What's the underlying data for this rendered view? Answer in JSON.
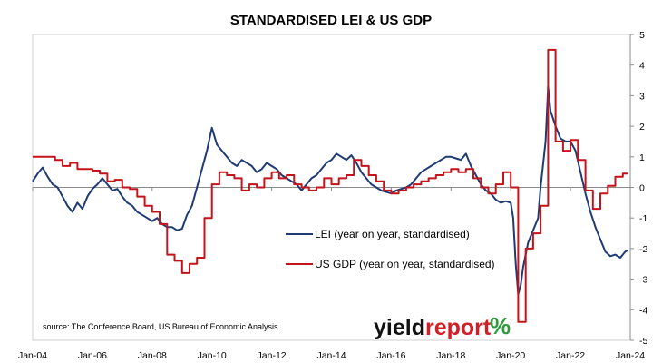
{
  "chart_data": {
    "type": "line",
    "title": "STANDARDISED LEI & US GDP",
    "source": "source: The Conference Board, US Bureau of Economic Analysis",
    "ylim": [
      -5,
      5
    ],
    "yticks": [
      "5",
      "4",
      "3",
      "2",
      "1",
      "0",
      "-1",
      "-2",
      "-3",
      "-4",
      "-5"
    ],
    "xlim": [
      "2004-01",
      "2024-01"
    ],
    "xticks": [
      {
        "date": "2004-01",
        "label": "Jan-04"
      },
      {
        "date": "2006-01",
        "label": "Jan-06"
      },
      {
        "date": "2008-01",
        "label": "Jan-08"
      },
      {
        "date": "2010-01",
        "label": "Jan-10"
      },
      {
        "date": "2012-01",
        "label": "Jan-12"
      },
      {
        "date": "2014-01",
        "label": "Jan-14"
      },
      {
        "date": "2016-01",
        "label": "Jan-16"
      },
      {
        "date": "2018-01",
        "label": "Jan-18"
      },
      {
        "date": "2020-01",
        "label": "Jan-20"
      },
      {
        "date": "2022-01",
        "label": "Jan-22"
      },
      {
        "date": "2024-01",
        "label": "Jan-24"
      }
    ],
    "grid": false,
    "legend_position": "center-right",
    "series": [
      {
        "name": "LEI (year on year, standardised)",
        "color": "#1f3b73",
        "step": false,
        "points": [
          [
            "2004-01",
            0.2
          ],
          [
            "2004-03",
            0.45
          ],
          [
            "2004-05",
            0.65
          ],
          [
            "2004-07",
            0.35
          ],
          [
            "2004-09",
            0.1
          ],
          [
            "2004-11",
            0.0
          ],
          [
            "2005-01",
            -0.3
          ],
          [
            "2005-03",
            -0.6
          ],
          [
            "2005-05",
            -0.8
          ],
          [
            "2005-07",
            -0.5
          ],
          [
            "2005-09",
            -0.7
          ],
          [
            "2005-11",
            -0.3
          ],
          [
            "2006-01",
            -0.05
          ],
          [
            "2006-03",
            0.1
          ],
          [
            "2006-05",
            0.3
          ],
          [
            "2006-07",
            0.1
          ],
          [
            "2006-09",
            -0.1
          ],
          [
            "2006-11",
            -0.05
          ],
          [
            "2007-01",
            -0.3
          ],
          [
            "2007-03",
            -0.5
          ],
          [
            "2007-05",
            -0.6
          ],
          [
            "2007-07",
            -0.8
          ],
          [
            "2007-09",
            -0.9
          ],
          [
            "2007-11",
            -1.0
          ],
          [
            "2008-01",
            -1.1
          ],
          [
            "2008-03",
            -1.0
          ],
          [
            "2008-05",
            -1.2
          ],
          [
            "2008-07",
            -1.3
          ],
          [
            "2008-09",
            -1.3
          ],
          [
            "2008-11",
            -1.4
          ],
          [
            "2009-01",
            -1.35
          ],
          [
            "2009-03",
            -0.9
          ],
          [
            "2009-05",
            -0.6
          ],
          [
            "2009-07",
            0.0
          ],
          [
            "2009-09",
            0.6
          ],
          [
            "2009-11",
            1.2
          ],
          [
            "2010-01",
            1.95
          ],
          [
            "2010-03",
            1.4
          ],
          [
            "2010-05",
            1.2
          ],
          [
            "2010-07",
            1.0
          ],
          [
            "2010-09",
            0.8
          ],
          [
            "2010-11",
            0.7
          ],
          [
            "2011-01",
            0.9
          ],
          [
            "2011-03",
            0.8
          ],
          [
            "2011-05",
            0.7
          ],
          [
            "2011-07",
            0.5
          ],
          [
            "2011-09",
            0.6
          ],
          [
            "2011-11",
            0.8
          ],
          [
            "2012-01",
            0.7
          ],
          [
            "2012-03",
            0.6
          ],
          [
            "2012-05",
            0.4
          ],
          [
            "2012-07",
            0.3
          ],
          [
            "2012-09",
            0.2
          ],
          [
            "2012-11",
            0.1
          ],
          [
            "2013-01",
            -0.1
          ],
          [
            "2013-03",
            0.1
          ],
          [
            "2013-05",
            0.3
          ],
          [
            "2013-07",
            0.4
          ],
          [
            "2013-09",
            0.6
          ],
          [
            "2013-11",
            0.8
          ],
          [
            "2014-01",
            0.9
          ],
          [
            "2014-03",
            1.1
          ],
          [
            "2014-05",
            1.0
          ],
          [
            "2014-07",
            0.9
          ],
          [
            "2014-09",
            1.05
          ],
          [
            "2014-11",
            0.8
          ],
          [
            "2015-01",
            0.5
          ],
          [
            "2015-03",
            0.3
          ],
          [
            "2015-05",
            0.1
          ],
          [
            "2015-07",
            0.0
          ],
          [
            "2015-09",
            -0.1
          ],
          [
            "2015-11",
            -0.15
          ],
          [
            "2016-01",
            -0.2
          ],
          [
            "2016-03",
            -0.1
          ],
          [
            "2016-05",
            -0.05
          ],
          [
            "2016-07",
            0.0
          ],
          [
            "2016-09",
            0.1
          ],
          [
            "2016-11",
            0.3
          ],
          [
            "2017-01",
            0.5
          ],
          [
            "2017-03",
            0.6
          ],
          [
            "2017-05",
            0.7
          ],
          [
            "2017-07",
            0.8
          ],
          [
            "2017-09",
            0.9
          ],
          [
            "2017-11",
            1.0
          ],
          [
            "2018-01",
            1.0
          ],
          [
            "2018-03",
            0.95
          ],
          [
            "2018-05",
            0.9
          ],
          [
            "2018-07",
            1.1
          ],
          [
            "2018-09",
            0.7
          ],
          [
            "2018-11",
            0.4
          ],
          [
            "2019-01",
            0.1
          ],
          [
            "2019-03",
            -0.1
          ],
          [
            "2019-05",
            -0.2
          ],
          [
            "2019-07",
            -0.4
          ],
          [
            "2019-09",
            -0.5
          ],
          [
            "2019-11",
            -0.45
          ],
          [
            "2020-01",
            -0.5
          ],
          [
            "2020-02",
            -1.0
          ],
          [
            "2020-03",
            -2.5
          ],
          [
            "2020-04",
            -3.5
          ],
          [
            "2020-05",
            -3.2
          ],
          [
            "2020-06",
            -2.6
          ],
          [
            "2020-08",
            -1.8
          ],
          [
            "2020-10",
            -1.4
          ],
          [
            "2020-12",
            -1.0
          ],
          [
            "2021-01",
            0.0
          ],
          [
            "2021-03",
            1.5
          ],
          [
            "2021-04",
            3.3
          ],
          [
            "2021-05",
            2.5
          ],
          [
            "2021-07",
            2.0
          ],
          [
            "2021-09",
            1.6
          ],
          [
            "2021-11",
            1.5
          ],
          [
            "2022-01",
            1.5
          ],
          [
            "2022-03",
            1.2
          ],
          [
            "2022-05",
            0.5
          ],
          [
            "2022-07",
            -0.2
          ],
          [
            "2022-09",
            -0.8
          ],
          [
            "2022-11",
            -1.3
          ],
          [
            "2023-01",
            -1.7
          ],
          [
            "2023-03",
            -2.1
          ],
          [
            "2023-05",
            -2.25
          ],
          [
            "2023-07",
            -2.2
          ],
          [
            "2023-09",
            -2.3
          ],
          [
            "2023-11",
            -2.1
          ],
          [
            "2023-12",
            -2.05
          ]
        ]
      },
      {
        "name": "US GDP (year on year, standardised)",
        "color": "#c3141c",
        "step": true,
        "points": [
          [
            "2004-01",
            1.0
          ],
          [
            "2004-10",
            0.9
          ],
          [
            "2005-01",
            0.7
          ],
          [
            "2005-04",
            0.8
          ],
          [
            "2005-07",
            0.6
          ],
          [
            "2005-10",
            0.6
          ],
          [
            "2006-01",
            0.55
          ],
          [
            "2006-04",
            0.45
          ],
          [
            "2006-07",
            0.2
          ],
          [
            "2006-10",
            0.25
          ],
          [
            "2007-01",
            0.0
          ],
          [
            "2007-04",
            -0.05
          ],
          [
            "2007-07",
            -0.3
          ],
          [
            "2007-10",
            -0.6
          ],
          [
            "2008-01",
            -0.8
          ],
          [
            "2008-04",
            -1.2
          ],
          [
            "2008-07",
            -2.2
          ],
          [
            "2008-10",
            -2.4
          ],
          [
            "2009-01",
            -2.8
          ],
          [
            "2009-04",
            -2.5
          ],
          [
            "2009-07",
            -2.3
          ],
          [
            "2009-10",
            -1.0
          ],
          [
            "2010-01",
            0.1
          ],
          [
            "2010-04",
            0.5
          ],
          [
            "2010-07",
            0.4
          ],
          [
            "2010-10",
            0.3
          ],
          [
            "2011-01",
            -0.1
          ],
          [
            "2011-04",
            0.1
          ],
          [
            "2011-07",
            0.0
          ],
          [
            "2011-10",
            0.3
          ],
          [
            "2012-01",
            0.5
          ],
          [
            "2012-04",
            0.3
          ],
          [
            "2012-07",
            0.4
          ],
          [
            "2012-10",
            0.1
          ],
          [
            "2013-01",
            0.0
          ],
          [
            "2013-04",
            -0.1
          ],
          [
            "2013-07",
            0.0
          ],
          [
            "2013-10",
            0.3
          ],
          [
            "2014-01",
            0.1
          ],
          [
            "2014-04",
            0.3
          ],
          [
            "2014-07",
            0.4
          ],
          [
            "2014-10",
            0.9
          ],
          [
            "2015-01",
            0.7
          ],
          [
            "2015-04",
            0.4
          ],
          [
            "2015-07",
            0.2
          ],
          [
            "2015-10",
            -0.1
          ],
          [
            "2016-01",
            -0.2
          ],
          [
            "2016-04",
            -0.1
          ],
          [
            "2016-07",
            0.0
          ],
          [
            "2016-10",
            0.1
          ],
          [
            "2017-01",
            0.2
          ],
          [
            "2017-04",
            0.3
          ],
          [
            "2017-07",
            0.4
          ],
          [
            "2017-10",
            0.5
          ],
          [
            "2018-01",
            0.6
          ],
          [
            "2018-04",
            0.5
          ],
          [
            "2018-07",
            0.6
          ],
          [
            "2018-10",
            0.3
          ],
          [
            "2019-01",
            0.0
          ],
          [
            "2019-04",
            -0.2
          ],
          [
            "2019-07",
            0.1
          ],
          [
            "2019-10",
            0.5
          ],
          [
            "2020-01",
            0.0
          ],
          [
            "2020-04",
            -4.4
          ],
          [
            "2020-07",
            -2.0
          ],
          [
            "2020-10",
            -1.5
          ],
          [
            "2021-01",
            -0.6
          ],
          [
            "2021-04",
            4.5
          ],
          [
            "2021-07",
            1.5
          ],
          [
            "2021-10",
            1.2
          ],
          [
            "2022-01",
            1.55
          ],
          [
            "2022-04",
            0.9
          ],
          [
            "2022-07",
            -0.1
          ],
          [
            "2022-10",
            -0.7
          ],
          [
            "2023-01",
            -0.2
          ],
          [
            "2023-04",
            0.05
          ],
          [
            "2023-07",
            0.35
          ],
          [
            "2023-10",
            0.45
          ],
          [
            "2023-12",
            0.45
          ]
        ]
      }
    ]
  },
  "logo": {
    "part1": "yield",
    "part2": "report",
    "pct": "%"
  }
}
